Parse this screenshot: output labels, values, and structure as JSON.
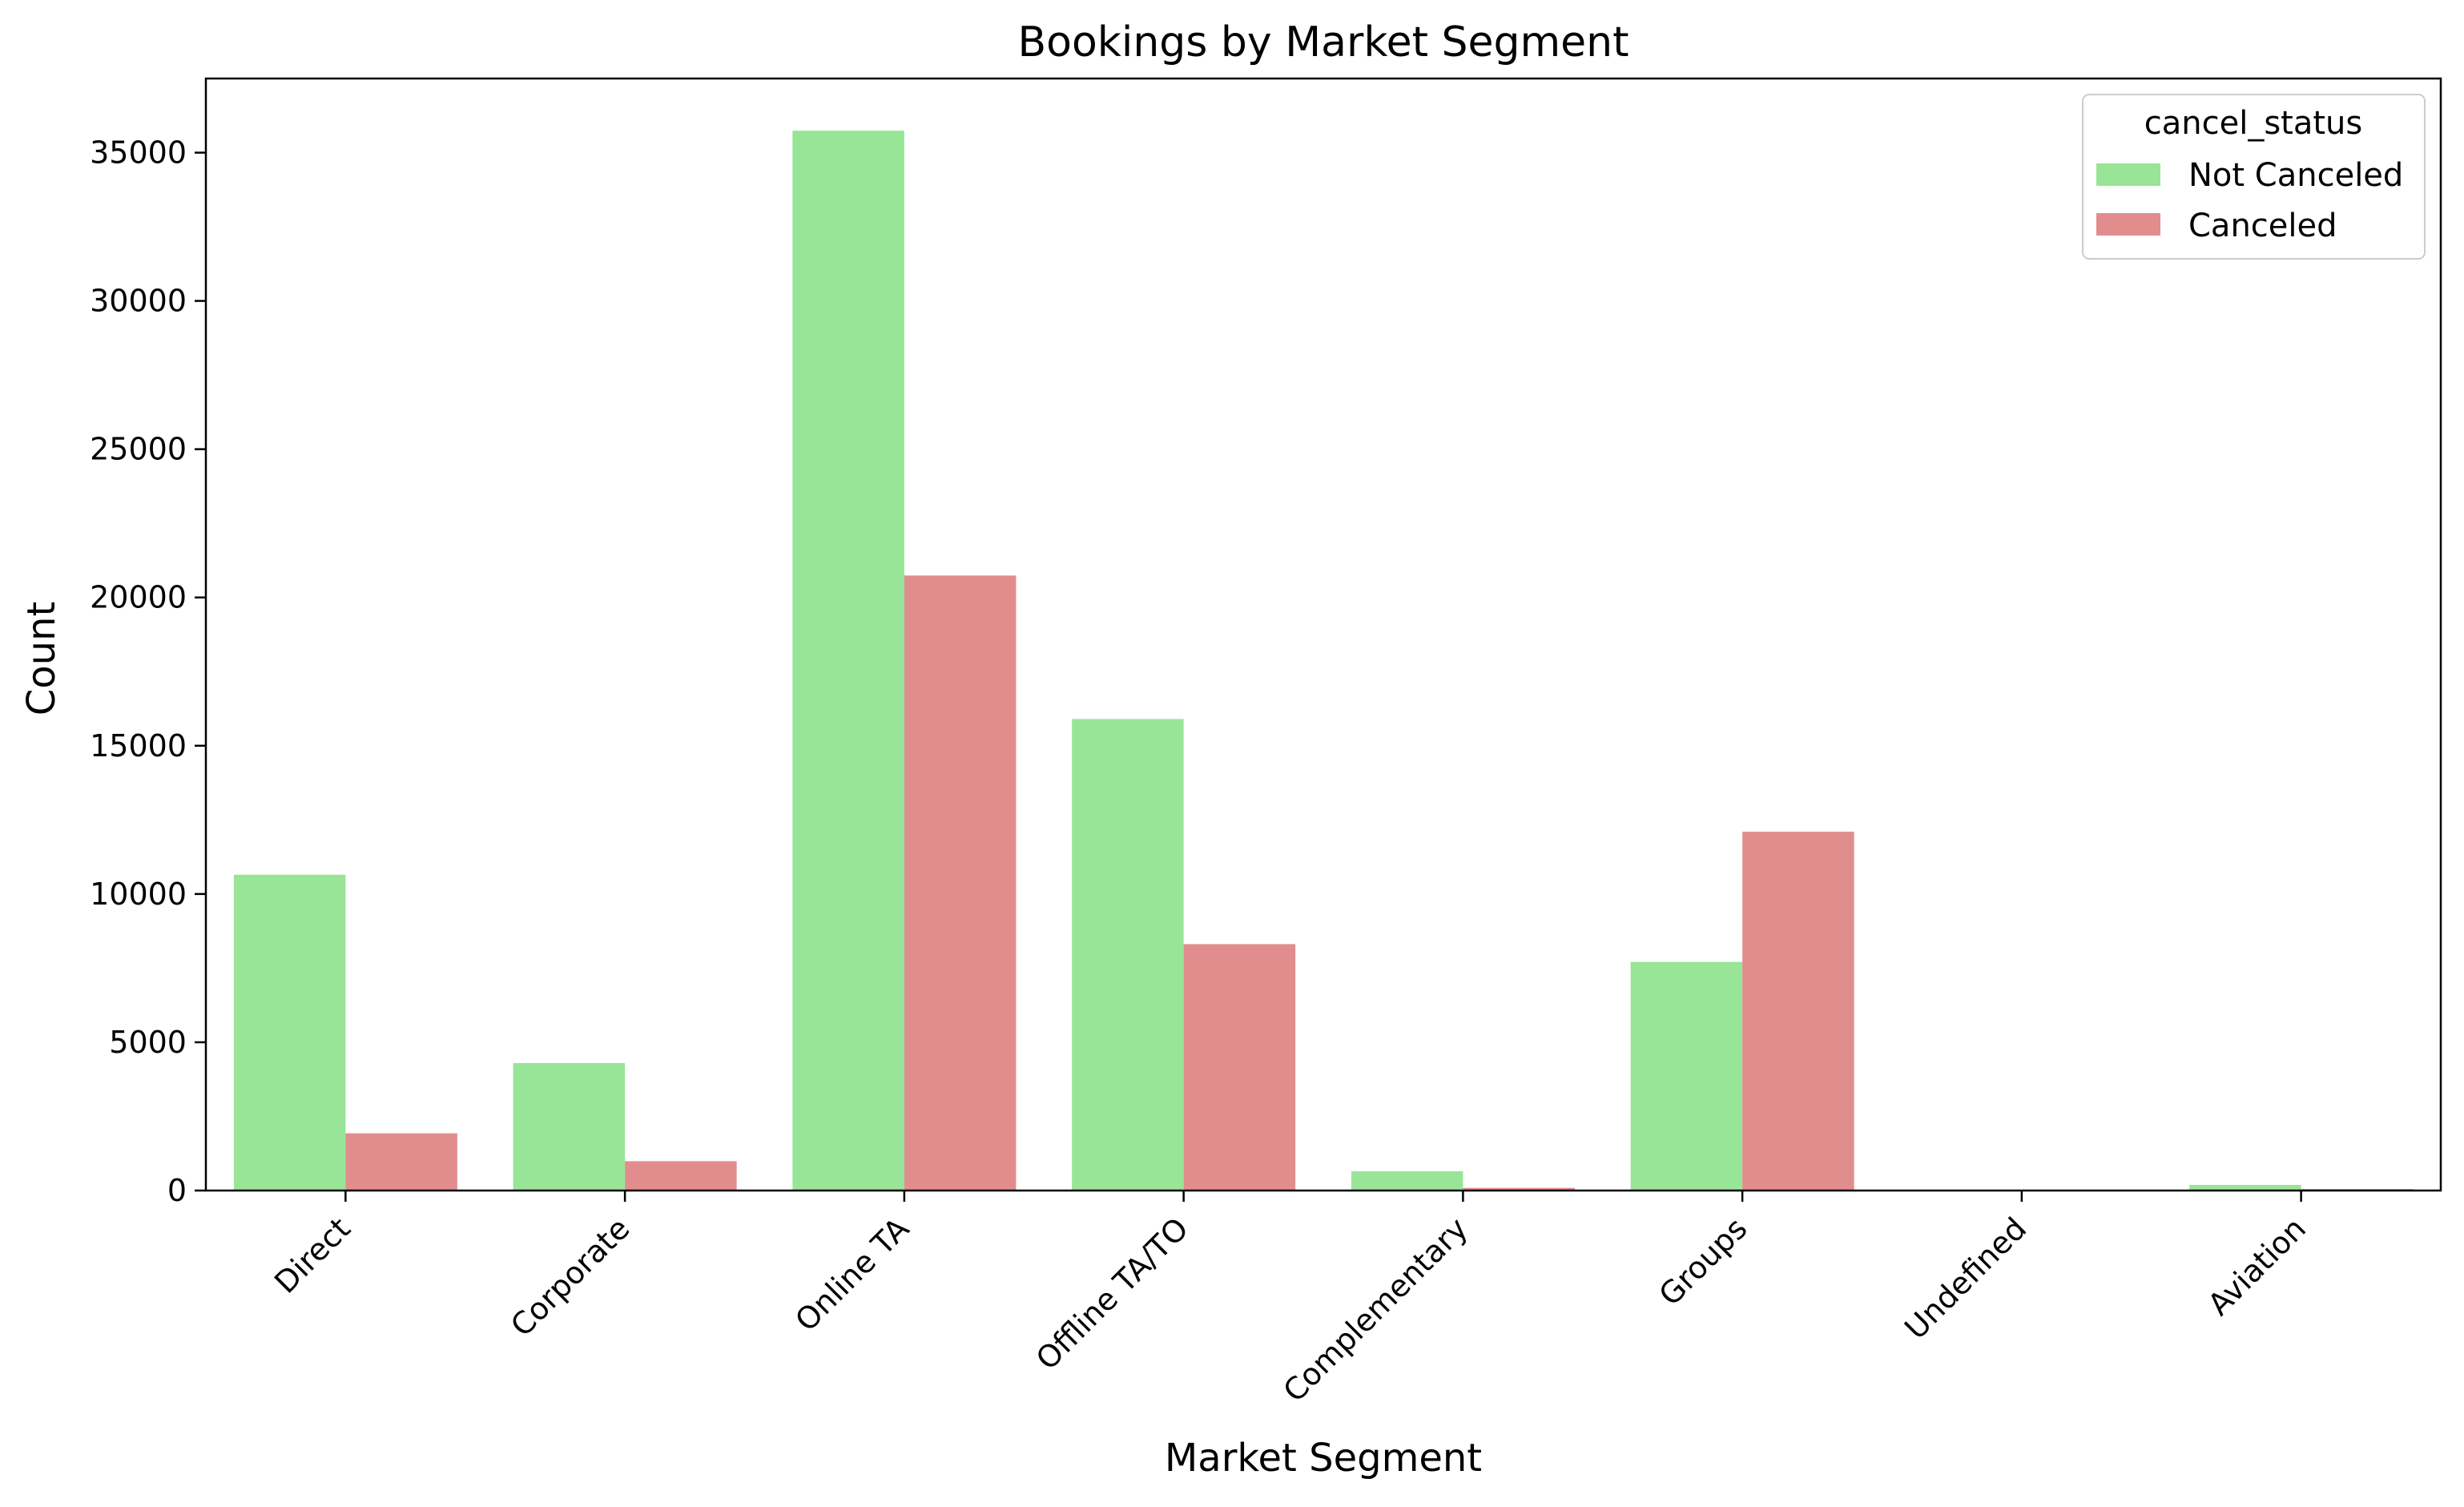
{
  "chart_data": {
    "type": "bar",
    "title": "Bookings by Market Segment",
    "xlabel": "Market Segment",
    "ylabel": "Count",
    "categories": [
      "Direct",
      "Corporate",
      "Online TA",
      "Offline TA/TO",
      "Complementary",
      "Groups",
      "Undefined",
      "Aviation"
    ],
    "series": [
      {
        "name": "Not Canceled",
        "color": "#98e598",
        "values": [
          10650,
          4300,
          35740,
          15900,
          650,
          7710,
          1,
          190
        ]
      },
      {
        "name": "Canceled",
        "color": "#e28d8d",
        "values": [
          1930,
          990,
          20740,
          8310,
          90,
          12100,
          4,
          50
        ]
      }
    ],
    "legend": {
      "title": "cancel_status",
      "position": "top-right"
    },
    "ylim": [
      0,
      37500
    ],
    "yticks": [
      0,
      5000,
      10000,
      15000,
      20000,
      25000,
      30000,
      35000
    ],
    "grid": false
  }
}
